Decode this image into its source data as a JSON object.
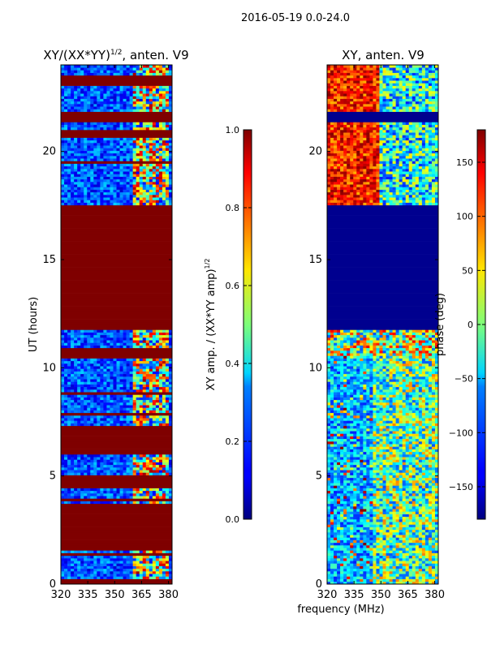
{
  "suptitle": "2016-05-19 0.0-24.0",
  "xlabel": "frequency (MHz)",
  "ylabel": "UT (hours)",
  "chart_data": [
    {
      "type": "heatmap",
      "title_main": "XY/(XX*YY)",
      "title_sup": "1/2",
      "title_tail": ", anten. V9",
      "xlim": [
        320,
        382
      ],
      "ylim": [
        0,
        24
      ],
      "xticks": [
        320,
        335,
        350,
        365,
        380
      ],
      "yticks": [
        0,
        5,
        10,
        15,
        20
      ],
      "colorbar": {
        "label_main": "XY amp. / (XX*YY amp)",
        "label_sup": "1/2",
        "range": [
          0.0,
          1.0
        ],
        "ticks": [
          "0.0",
          "0.2",
          "0.4",
          "0.6",
          "0.8",
          "1.0"
        ],
        "tick_values": [
          0.0,
          0.2,
          0.4,
          0.6,
          0.8,
          1.0
        ]
      },
      "saturated_bands_hours": [
        [
          0.0,
          0.3
        ],
        [
          1.6,
          3.5
        ],
        [
          4.5,
          5.1
        ],
        [
          6.0,
          7.3
        ],
        [
          10.4,
          10.9
        ],
        [
          11.8,
          17.5
        ],
        [
          20.6,
          21.0
        ],
        [
          21.3,
          21.8
        ],
        [
          23.0,
          23.5
        ]
      ]
    },
    {
      "type": "heatmap",
      "title": "XY, anten. V9",
      "xlim": [
        320,
        382
      ],
      "ylim": [
        0,
        24
      ],
      "xticks": [
        320,
        335,
        350,
        365,
        380
      ],
      "yticks": [
        0,
        5,
        10,
        15,
        20
      ],
      "colorbar": {
        "label": "phase (deg)",
        "range": [
          -180,
          180
        ],
        "ticks": [
          "150",
          "100",
          "50",
          "0",
          "−50",
          "−100",
          "−150"
        ],
        "tick_values": [
          150,
          100,
          50,
          0,
          -50,
          -100,
          -150
        ]
      },
      "flat_bands_hours": [
        [
          11.8,
          17.5
        ],
        [
          21.3,
          21.8
        ]
      ]
    }
  ]
}
